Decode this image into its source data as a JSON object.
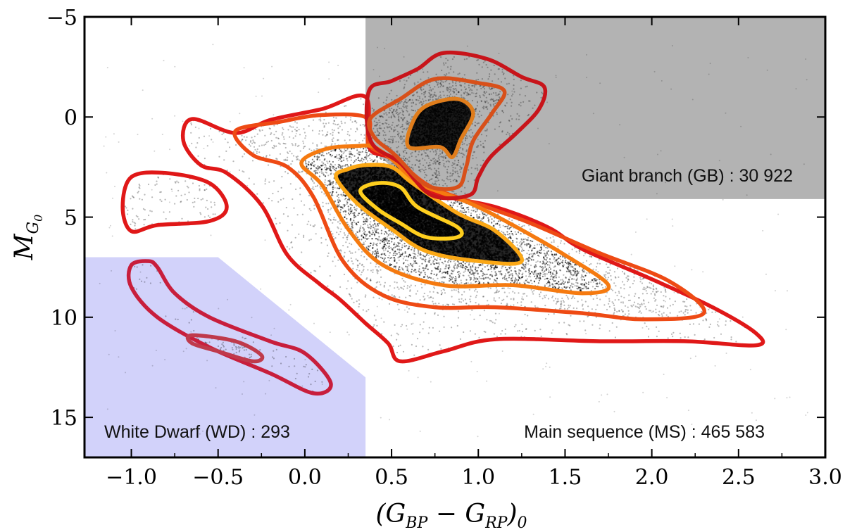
{
  "chart_data": {
    "type": "scatter",
    "title": "",
    "xlabel": "(G_BP − G_RP)_0",
    "ylabel": "M_G0",
    "axis_title": {
      "x_main": "(G",
      "x_sub1": "BP",
      "x_minus": " − G",
      "x_sub2": "RP",
      "x_close": ")",
      "x_sub3": "0",
      "y_main": "M",
      "y_sub": "G",
      "y_subsub": "0"
    },
    "xlim": [
      -1.27,
      3.0
    ],
    "ylim": [
      17.0,
      -5.0
    ],
    "y_inverted": true,
    "xticks": [
      -1.0,
      -0.5,
      0.0,
      0.5,
      1.0,
      1.5,
      2.0,
      2.5,
      3.0
    ],
    "xtick_labels": [
      "−1.0",
      "−0.5",
      "0.0",
      "0.5",
      "1.0",
      "1.5",
      "2.0",
      "2.5",
      "3.0"
    ],
    "yticks": [
      -5,
      0,
      5,
      10,
      15
    ],
    "ytick_labels": [
      "−5",
      "0",
      "5",
      "10",
      "15"
    ],
    "regions": [
      {
        "name": "Giant branch (GB)",
        "count": "30 922",
        "label": "Giant branch (GB) : 30 922",
        "color": "#b3b3b3",
        "boundary": [
          [
            0.35,
            -5.0
          ],
          [
            3.0,
            -5.0
          ],
          [
            3.0,
            4.1
          ],
          [
            0.7,
            4.1
          ],
          [
            0.35,
            1.4
          ]
        ]
      },
      {
        "name": "White Dwarf (WD)",
        "count": "293",
        "label": "White Dwarf (WD) : 293",
        "color": "#d2d2fa",
        "boundary": [
          [
            -1.27,
            7.0
          ],
          [
            -0.5,
            7.0
          ],
          [
            0.35,
            13.0
          ],
          [
            0.35,
            17.0
          ],
          [
            -1.27,
            17.0
          ]
        ]
      },
      {
        "name": "Main sequence (MS)",
        "count": "465 583",
        "label": "Main sequence (MS) : 465 583",
        "color": "#ffffff"
      }
    ],
    "contour_colors": [
      "#e01818",
      "#ee4a14",
      "#f57a10",
      "#fba816",
      "#ffcf1e"
    ],
    "gb_contour_colors": [
      "#c8141a",
      "#d8501a",
      "#e07d1c"
    ],
    "wd_contour_colors": [
      "#c81e3c",
      "#bf3a4c"
    ],
    "contours": [
      {
        "level": 1,
        "region": "MS",
        "points": [
          [
            -0.65,
            0.1
          ],
          [
            -0.4,
            0.8
          ],
          [
            -0.2,
            0.15
          ],
          [
            0.1,
            -0.4
          ],
          [
            0.35,
            -1.0
          ],
          [
            0.37,
            1.5
          ],
          [
            0.5,
            2.1
          ],
          [
            0.72,
            3.7
          ],
          [
            1.1,
            4.5
          ],
          [
            1.4,
            5.5
          ],
          [
            1.6,
            6.6
          ],
          [
            2.0,
            8.1
          ],
          [
            2.35,
            9.5
          ],
          [
            2.6,
            10.8
          ],
          [
            2.6,
            11.4
          ],
          [
            2.2,
            11.2
          ],
          [
            1.7,
            11.2
          ],
          [
            1.1,
            11.1
          ],
          [
            0.8,
            11.7
          ],
          [
            0.55,
            12.2
          ],
          [
            0.48,
            11.3
          ],
          [
            0.35,
            10.3
          ],
          [
            0.2,
            9.1
          ],
          [
            0.08,
            8.3
          ],
          [
            -0.1,
            6.9
          ],
          [
            -0.25,
            4.4
          ],
          [
            -0.45,
            2.8
          ],
          [
            -0.6,
            2.4
          ],
          [
            -0.7,
            1.2
          ]
        ]
      },
      {
        "level": 2,
        "region": "MS",
        "points": [
          [
            -0.4,
            0.7
          ],
          [
            -0.15,
            0.25
          ],
          [
            0.1,
            -0.1
          ],
          [
            0.36,
            0.05
          ],
          [
            0.37,
            1.4
          ],
          [
            0.52,
            2.1
          ],
          [
            0.73,
            3.5
          ],
          [
            1.05,
            4.5
          ],
          [
            1.3,
            5.3
          ],
          [
            1.7,
            6.8
          ],
          [
            2.1,
            8.2
          ],
          [
            2.3,
            9.8
          ],
          [
            1.95,
            10.1
          ],
          [
            1.6,
            9.8
          ],
          [
            1.1,
            9.5
          ],
          [
            0.75,
            9.5
          ],
          [
            0.45,
            8.9
          ],
          [
            0.22,
            7.2
          ],
          [
            0.05,
            4.0
          ],
          [
            -0.1,
            2.5
          ],
          [
            -0.3,
            1.9
          ]
        ]
      },
      {
        "level": 3,
        "region": "MS",
        "points": [
          [
            -0.02,
            2.3
          ],
          [
            0.12,
            1.6
          ],
          [
            0.3,
            1.45
          ],
          [
            0.4,
            1.5
          ],
          [
            0.52,
            2.25
          ],
          [
            0.65,
            3.3
          ],
          [
            0.95,
            4.3
          ],
          [
            1.2,
            5.4
          ],
          [
            1.5,
            6.9
          ],
          [
            1.75,
            8.4
          ],
          [
            1.6,
            8.8
          ],
          [
            1.2,
            8.4
          ],
          [
            0.8,
            8.4
          ],
          [
            0.45,
            7.4
          ],
          [
            0.25,
            5.6
          ],
          [
            0.1,
            3.4
          ]
        ]
      },
      {
        "level": 4,
        "region": "MS",
        "points": [
          [
            0.18,
            3.0
          ],
          [
            0.25,
            2.6
          ],
          [
            0.35,
            2.4
          ],
          [
            0.5,
            2.5
          ],
          [
            0.62,
            3.3
          ],
          [
            0.88,
            4.8
          ],
          [
            1.1,
            5.7
          ],
          [
            1.25,
            7.2
          ],
          [
            1.0,
            7.2
          ],
          [
            0.7,
            6.7
          ],
          [
            0.5,
            5.6
          ],
          [
            0.3,
            4.3
          ]
        ]
      },
      {
        "level": 5,
        "region": "MS",
        "points": [
          [
            0.32,
            3.7
          ],
          [
            0.42,
            3.3
          ],
          [
            0.55,
            3.5
          ],
          [
            0.65,
            4.5
          ],
          [
            0.88,
            5.5
          ],
          [
            0.88,
            6.0
          ],
          [
            0.7,
            6.0
          ],
          [
            0.55,
            5.3
          ],
          [
            0.42,
            4.6
          ]
        ]
      },
      {
        "level": 1,
        "region": "MS-blob",
        "points": [
          [
            -1.0,
            3.0
          ],
          [
            -0.8,
            2.8
          ],
          [
            -0.55,
            3.3
          ],
          [
            -0.45,
            4.5
          ],
          [
            -0.55,
            5.2
          ],
          [
            -0.85,
            5.4
          ],
          [
            -1.0,
            5.7
          ],
          [
            -1.05,
            4.5
          ]
        ]
      },
      {
        "level": 1,
        "region": "GB",
        "points": [
          [
            0.37,
            -1.3
          ],
          [
            0.5,
            -1.8
          ],
          [
            0.65,
            -2.4
          ],
          [
            0.8,
            -3.2
          ],
          [
            1.05,
            -2.9
          ],
          [
            1.25,
            -2.0
          ],
          [
            1.38,
            -1.5
          ],
          [
            1.35,
            -0.4
          ],
          [
            1.22,
            0.8
          ],
          [
            1.07,
            2.0
          ],
          [
            1.0,
            3.0
          ],
          [
            0.95,
            3.9
          ],
          [
            0.73,
            3.9
          ],
          [
            0.55,
            2.3
          ],
          [
            0.38,
            1.2
          ]
        ]
      },
      {
        "level": 2,
        "region": "GB",
        "points": [
          [
            0.38,
            0.05
          ],
          [
            0.55,
            -0.9
          ],
          [
            0.75,
            -1.9
          ],
          [
            1.0,
            -1.7
          ],
          [
            1.15,
            -1.3
          ],
          [
            1.08,
            -0.2
          ],
          [
            0.97,
            1.2
          ],
          [
            0.93,
            2.5
          ],
          [
            0.88,
            3.5
          ],
          [
            0.7,
            3.4
          ],
          [
            0.52,
            1.9
          ],
          [
            0.4,
            1.0
          ]
        ]
      },
      {
        "level": 3,
        "region": "GB",
        "points": [
          [
            0.6,
            1.5
          ],
          [
            0.62,
            0.3
          ],
          [
            0.7,
            -0.55
          ],
          [
            0.88,
            -0.9
          ],
          [
            0.97,
            -0.2
          ],
          [
            0.9,
            1.1
          ],
          [
            0.85,
            2.0
          ],
          [
            0.78,
            1.5
          ]
        ]
      },
      {
        "level": 1,
        "region": "WD",
        "points": [
          [
            -1.0,
            7.4
          ],
          [
            -0.9,
            7.2
          ],
          [
            -0.85,
            7.5
          ],
          [
            -0.75,
            8.8
          ],
          [
            -0.55,
            10.0
          ],
          [
            -0.2,
            11.2
          ],
          [
            0.0,
            11.8
          ],
          [
            0.15,
            13.3
          ],
          [
            0.05,
            13.8
          ],
          [
            -0.2,
            12.8
          ],
          [
            -0.55,
            11.5
          ],
          [
            -0.85,
            10.0
          ],
          [
            -1.0,
            8.5
          ]
        ]
      },
      {
        "level": 2,
        "region": "WD",
        "points": [
          [
            -0.65,
            10.9
          ],
          [
            -0.4,
            11.2
          ],
          [
            -0.25,
            11.9
          ],
          [
            -0.3,
            12.2
          ],
          [
            -0.5,
            11.7
          ],
          [
            -0.65,
            11.3
          ]
        ]
      }
    ]
  }
}
